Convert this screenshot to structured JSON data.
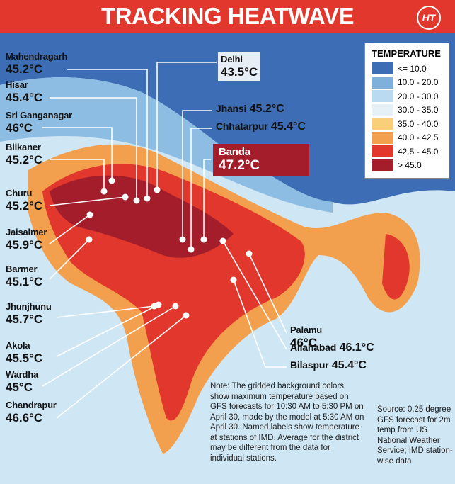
{
  "header": {
    "title": "TRACKING HEATWAVE",
    "logo": "HT"
  },
  "legend": {
    "title": "TEMPERATURE",
    "items": [
      {
        "label": "<= 10.0",
        "color": "#3d6db5"
      },
      {
        "label": "10.0 - 20.0",
        "color": "#7fb0dc"
      },
      {
        "label": "20.0 - 30.0",
        "color": "#b9daf0"
      },
      {
        "label": "30.0 - 35.0",
        "color": "#e6f1f7"
      },
      {
        "label": "35.0 - 40.0",
        "color": "#f9cf7a"
      },
      {
        "label": "40.0 - 42.5",
        "color": "#f3a04e"
      },
      {
        "label": "42.5 - 45.0",
        "color": "#e2372c"
      },
      {
        "label": "> 45.0",
        "color": "#a31e2a"
      }
    ]
  },
  "stations": [
    {
      "name": "Mahendragarh",
      "temp": "45.2°C"
    },
    {
      "name": "Hisar",
      "temp": "45.4°C"
    },
    {
      "name": "Sri Ganganagar",
      "temp": "46°C"
    },
    {
      "name": "Biikaner",
      "temp": "45.2°C"
    },
    {
      "name": "Churu",
      "temp": "45.2°C"
    },
    {
      "name": "Jaisalmer",
      "temp": "45.9°C"
    },
    {
      "name": "Barmer",
      "temp": "45.1°C"
    },
    {
      "name": "Jhunjhunu",
      "temp": "45.7°C"
    },
    {
      "name": "Akola",
      "temp": "45.5°C"
    },
    {
      "name": "Wardha",
      "temp": "45°C"
    },
    {
      "name": "Chandrapur",
      "temp": "46.6°C"
    },
    {
      "name": "Delhi",
      "temp": "43.5°C"
    },
    {
      "name": "Jhansi",
      "temp": "45.2°C"
    },
    {
      "name": "Chhatarpur",
      "temp": "45.4°C"
    },
    {
      "name": "Banda",
      "temp": "47.2°C"
    },
    {
      "name": "Palamu",
      "temp": "46°C"
    },
    {
      "name": "Allahabad",
      "temp": "46.1°C"
    },
    {
      "name": "Bilaspur",
      "temp": "45.4°C"
    }
  ],
  "note": "Note: The gridded background colors show maximum temperature based on GFS forecasts for 10:30 AM to 5:30 PM on April 30, made by the model at 5:30 AM on April 30. Named labels show temperature at stations of IMD. Average for the district may be different from the data for individual stations.",
  "source": "Source: 0.25 degree GFS forecast for 2m temp from US National Weather Service; IMD station-wise data"
}
